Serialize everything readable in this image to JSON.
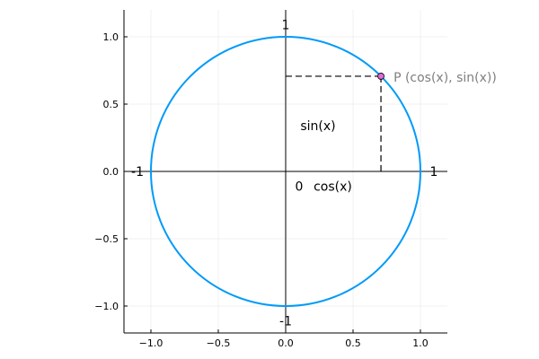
{
  "chart_data": {
    "type": "line",
    "title": "",
    "xlabel": "",
    "ylabel": "",
    "xlim": [
      -1.2,
      1.2
    ],
    "ylim": [
      -1.2,
      1.2
    ],
    "grid": true,
    "aspect": "equal",
    "x_ticks": [
      {
        "value": -1.0,
        "label": "−1.0"
      },
      {
        "value": -0.5,
        "label": "−0.5"
      },
      {
        "value": 0.0,
        "label": "0.0"
      },
      {
        "value": 0.5,
        "label": "0.5"
      },
      {
        "value": 1.0,
        "label": "1.0"
      }
    ],
    "y_ticks": [
      {
        "value": -1.0,
        "label": "−1.0"
      },
      {
        "value": -0.5,
        "label": "−0.5"
      },
      {
        "value": 0.0,
        "label": "0.0"
      },
      {
        "value": 0.5,
        "label": "0.5"
      },
      {
        "value": 1.0,
        "label": "1.0"
      }
    ],
    "series": [
      {
        "kind": "circle",
        "center": [
          0,
          0
        ],
        "radius": 1,
        "color": "#009af9"
      }
    ],
    "point": {
      "x": 0.7071,
      "y": 0.7071,
      "color": "#e26ad8",
      "label": "P (cos(x), sin(x))"
    },
    "annotations": [
      {
        "text": "1",
        "x": 0.0,
        "y": 1.09
      },
      {
        "text": "-1",
        "x": 0.0,
        "y": -1.11
      },
      {
        "text": "-1",
        "x": -1.1,
        "y": 0.0
      },
      {
        "text": "1",
        "x": 1.1,
        "y": 0.0
      },
      {
        "text": "0",
        "x": 0.1,
        "y": -0.11
      },
      {
        "text": "cos(x)",
        "x": 0.35,
        "y": -0.11
      },
      {
        "text": "sin(x)",
        "x": 0.24,
        "y": 0.34
      }
    ],
    "axis_lines_color": "#000000",
    "guide_line_color": "#000000"
  }
}
